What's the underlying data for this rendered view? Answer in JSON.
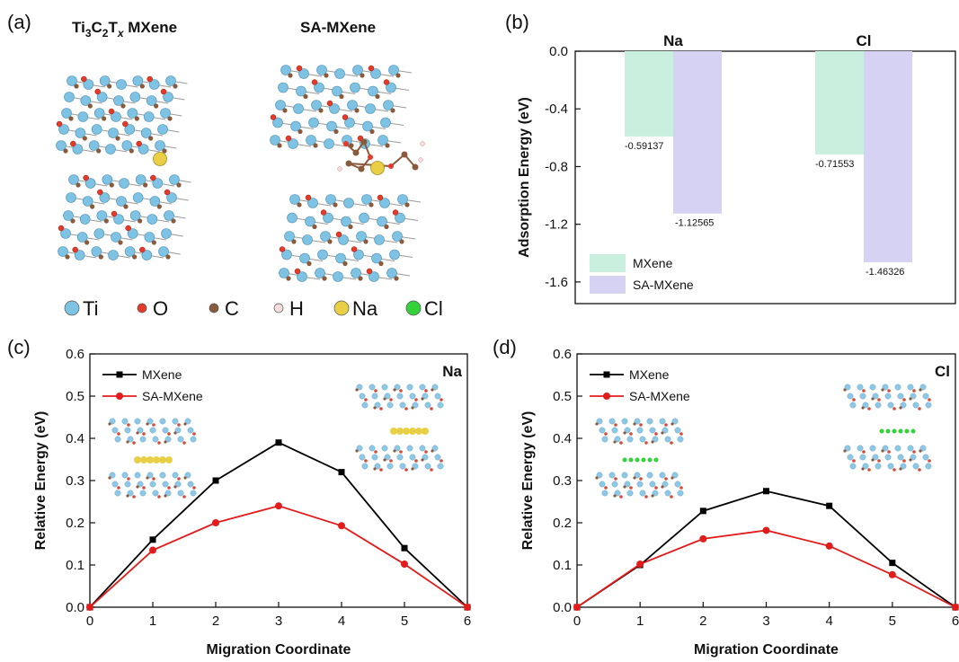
{
  "panel_a": {
    "label": "(a)",
    "title_left": {
      "base": "Ti",
      "s1": "3",
      "mid": "C",
      "s2": "2",
      "mid2": "T",
      "s3": "x",
      "tail": " MXene"
    },
    "title_right": "SA-MXene",
    "legend": [
      {
        "name": "Ti",
        "color": "#7ec3e4",
        "icon": "ti-atom-icon"
      },
      {
        "name": "O",
        "color": "#e53a2a",
        "icon": "o-atom-icon"
      },
      {
        "name": "C",
        "color": "#8a5a3c",
        "icon": "c-atom-icon"
      },
      {
        "name": "H",
        "color": "#f6dede",
        "icon": "h-atom-icon"
      },
      {
        "name": "Na",
        "color": "#e9cf45",
        "icon": "na-atom-icon"
      },
      {
        "name": "Cl",
        "color": "#35d13a",
        "icon": "cl-atom-icon"
      }
    ]
  },
  "colors": {
    "mxene_line": "#000000",
    "samxene_line": "#e21b1b",
    "mxene_bar": "#c9f0de",
    "samxene_bar": "#d6d2f3"
  },
  "chart_data": [
    {
      "panel": "(b)",
      "type": "bar",
      "groups": [
        "Na",
        "Cl"
      ],
      "series": [
        {
          "name": "MXene",
          "values": [
            -0.59137,
            -0.71553
          ],
          "labels": [
            "-0.59137",
            "-0.71553"
          ]
        },
        {
          "name": "SA-MXene",
          "values": [
            -1.12565,
            -1.46326
          ],
          "labels": [
            "-1.12565",
            "-1.46326"
          ]
        }
      ],
      "ylabel": "Adsorption Energy (eV)",
      "ylim": [
        -1.75,
        0
      ],
      "yticks": [
        "0.0",
        "-0.4",
        "-0.8",
        "-1.2",
        "-1.6"
      ],
      "legend": "bottom-left"
    },
    {
      "panel": "(c)",
      "type": "line",
      "annotation": "Na",
      "x": [
        0,
        1,
        2,
        3,
        4,
        5,
        6
      ],
      "series": [
        {
          "name": "MXene",
          "values": [
            0,
            0.16,
            0.3,
            0.39,
            0.32,
            0.14,
            0
          ]
        },
        {
          "name": "SA-MXene",
          "values": [
            0,
            0.135,
            0.2,
            0.24,
            0.193,
            0.102,
            0
          ]
        }
      ],
      "xlabel": "Migration Coordinate",
      "ylabel": "Relative  Energy (eV)",
      "xlim": [
        0,
        6
      ],
      "ylim": [
        0,
        0.6
      ],
      "xticks": [
        "0",
        "1",
        "2",
        "3",
        "4",
        "5",
        "6"
      ],
      "yticks": [
        "0.0",
        "0.1",
        "0.2",
        "0.3",
        "0.4",
        "0.5",
        "0.6"
      ],
      "legend": "top-left"
    },
    {
      "panel": "(d)",
      "type": "line",
      "annotation": "Cl",
      "x": [
        0,
        1,
        2,
        3,
        4,
        5,
        6
      ],
      "series": [
        {
          "name": "MXene",
          "values": [
            0,
            0.1,
            0.228,
            0.275,
            0.24,
            0.105,
            0
          ]
        },
        {
          "name": "SA-MXene",
          "values": [
            0,
            0.102,
            0.162,
            0.182,
            0.145,
            0.077,
            0
          ]
        }
      ],
      "xlabel": "Migration Coordinate",
      "ylabel": "Relative  Energy (eV)",
      "xlim": [
        0,
        6
      ],
      "ylim": [
        0,
        0.6
      ],
      "xticks": [
        "0",
        "1",
        "2",
        "3",
        "4",
        "5",
        "6"
      ],
      "yticks": [
        "0.0",
        "0.1",
        "0.2",
        "0.3",
        "0.4",
        "0.5",
        "0.6"
      ],
      "legend": "top-left"
    }
  ]
}
